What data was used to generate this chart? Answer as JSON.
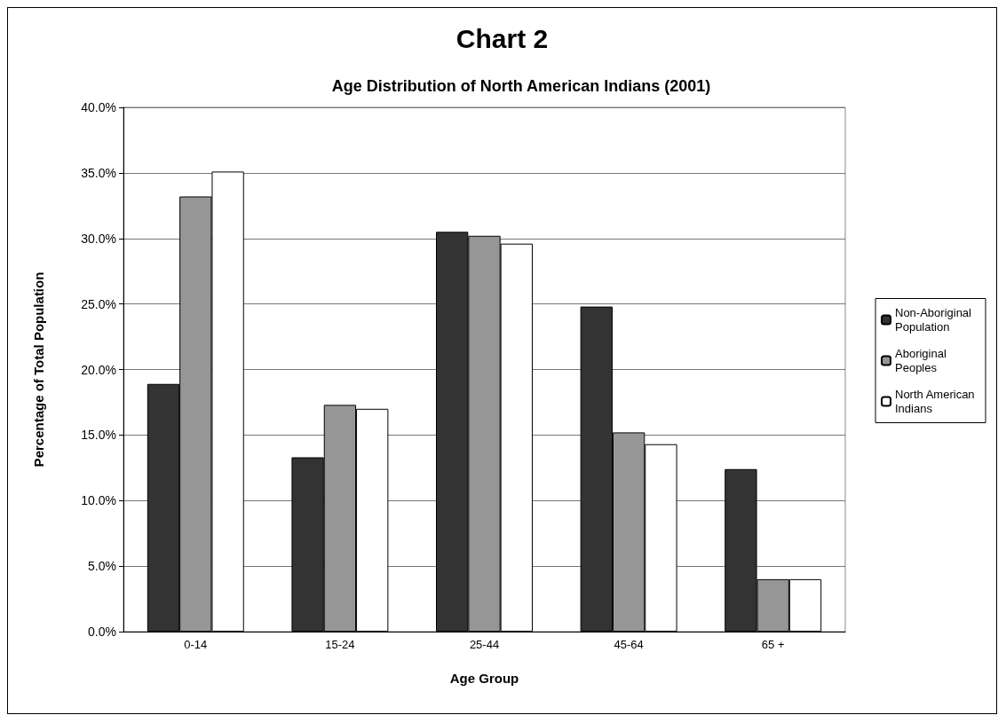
{
  "chart_data": {
    "type": "bar",
    "title": "Chart 2",
    "subtitle": "Age Distribution of North American Indians (2001)",
    "xlabel": "Age Group",
    "ylabel": "Percentage of Total Population",
    "categories": [
      "0-14",
      "15-24",
      "25-44",
      "45-64",
      "65 +"
    ],
    "series": [
      {
        "name": "Non-Aboriginal Population",
        "color": "#333333",
        "values": [
          18.9,
          13.3,
          30.5,
          24.8,
          12.4
        ]
      },
      {
        "name": "Aboriginal Peoples",
        "color": "#969696",
        "values": [
          33.2,
          17.3,
          30.2,
          15.2,
          4.0
        ]
      },
      {
        "name": "North American Indians",
        "color": "#ffffff",
        "values": [
          35.1,
          17.0,
          29.6,
          14.3,
          4.0
        ]
      }
    ],
    "ylim": [
      0,
      40
    ],
    "yticks": [
      {
        "value": 0,
        "label": "0.0%"
      },
      {
        "value": 5,
        "label": "5.0%"
      },
      {
        "value": 10,
        "label": "10.0%"
      },
      {
        "value": 15,
        "label": "15.0%"
      },
      {
        "value": 20,
        "label": "20.0%"
      },
      {
        "value": 25,
        "label": "25.0%"
      },
      {
        "value": 30,
        "label": "30.0%"
      },
      {
        "value": 35,
        "label": "35.0%"
      },
      {
        "value": 40,
        "label": "40.0%"
      }
    ],
    "grid": "y",
    "legend": "right"
  }
}
